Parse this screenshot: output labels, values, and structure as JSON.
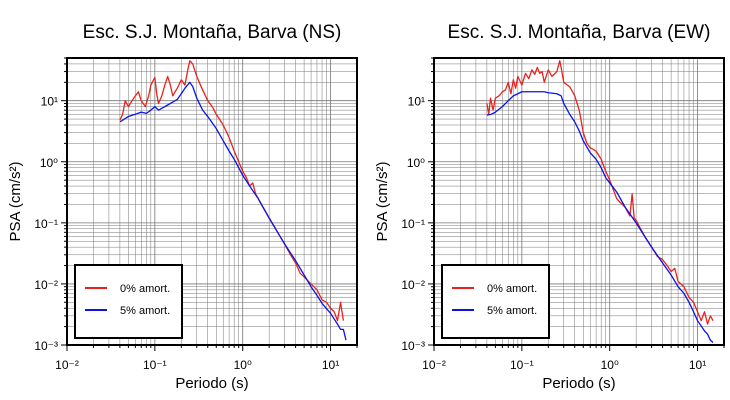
{
  "colors": {
    "undamped": "#e8231f",
    "damped": "#0a14e6",
    "grid": "#777777",
    "frame": "#000000"
  },
  "chart_data": [
    {
      "type": "line",
      "title": "Esc. S.J. Montaña, Barva (NS)",
      "xlabel": "Periodo (s)",
      "ylabel": "PSA (cm/s²)",
      "xscale": "log",
      "yscale": "log",
      "xlim": [
        0.01,
        20
      ],
      "ylim": [
        0.001,
        50
      ],
      "grid": true,
      "legend_position": "bottom-left",
      "x_ticks": [
        "10⁻²",
        "10⁻¹",
        "10⁰",
        "10¹"
      ],
      "y_ticks": [
        "10⁻³",
        "10⁻²",
        "10⁻¹",
        "10⁰",
        "10¹"
      ],
      "series": [
        {
          "name": "0% amort.",
          "color_key": "undamped",
          "points": [
            [
              0.04,
              4.8
            ],
            [
              0.043,
              6
            ],
            [
              0.046,
              10
            ],
            [
              0.05,
              8
            ],
            [
              0.055,
              10
            ],
            [
              0.06,
              12
            ],
            [
              0.065,
              14
            ],
            [
              0.07,
              10
            ],
            [
              0.078,
              8
            ],
            [
              0.085,
              12
            ],
            [
              0.09,
              18
            ],
            [
              0.1,
              24
            ],
            [
              0.105,
              13
            ],
            [
              0.11,
              9
            ],
            [
              0.12,
              12
            ],
            [
              0.13,
              18
            ],
            [
              0.14,
              25
            ],
            [
              0.15,
              18
            ],
            [
              0.16,
              12
            ],
            [
              0.17,
              14
            ],
            [
              0.18,
              16
            ],
            [
              0.2,
              22
            ],
            [
              0.22,
              18
            ],
            [
              0.24,
              35
            ],
            [
              0.25,
              45
            ],
            [
              0.27,
              40
            ],
            [
              0.3,
              25
            ],
            [
              0.32,
              20
            ],
            [
              0.35,
              15
            ],
            [
              0.4,
              10
            ],
            [
              0.45,
              8
            ],
            [
              0.5,
              6
            ],
            [
              0.6,
              4
            ],
            [
              0.7,
              2.5
            ],
            [
              0.8,
              1.5
            ],
            [
              0.9,
              1.0
            ],
            [
              1.0,
              0.7
            ],
            [
              1.1,
              0.55
            ],
            [
              1.2,
              0.4
            ],
            [
              1.3,
              0.45
            ],
            [
              1.4,
              0.3
            ],
            [
              1.5,
              0.25
            ],
            [
              1.7,
              0.18
            ],
            [
              2.0,
              0.12
            ],
            [
              2.5,
              0.07
            ],
            [
              3.0,
              0.045
            ],
            [
              3.5,
              0.03
            ],
            [
              4.0,
              0.022
            ],
            [
              4.5,
              0.015
            ],
            [
              5.0,
              0.013
            ],
            [
              6.0,
              0.01
            ],
            [
              7.0,
              0.008
            ],
            [
              8.0,
              0.0055
            ],
            [
              9.0,
              0.005
            ],
            [
              10.0,
              0.004
            ],
            [
              11.0,
              0.0035
            ],
            [
              12.0,
              0.0025
            ],
            [
              13.0,
              0.005
            ],
            [
              14.0,
              0.0025
            ]
          ]
        },
        {
          "name": "5% amort.",
          "color_key": "damped",
          "points": [
            [
              0.04,
              4.5
            ],
            [
              0.05,
              5.5
            ],
            [
              0.06,
              6
            ],
            [
              0.07,
              6.5
            ],
            [
              0.08,
              6.2
            ],
            [
              0.09,
              7
            ],
            [
              0.1,
              8
            ],
            [
              0.11,
              7
            ],
            [
              0.12,
              7.5
            ],
            [
              0.14,
              8.5
            ],
            [
              0.16,
              9.5
            ],
            [
              0.18,
              10.5
            ],
            [
              0.2,
              13
            ],
            [
              0.22,
              16
            ],
            [
              0.25,
              20
            ],
            [
              0.27,
              17
            ],
            [
              0.3,
              11
            ],
            [
              0.35,
              7
            ],
            [
              0.4,
              5.5
            ],
            [
              0.5,
              3.5
            ],
            [
              0.6,
              2.2
            ],
            [
              0.7,
              1.5
            ],
            [
              0.8,
              1.1
            ],
            [
              0.9,
              0.8
            ],
            [
              1.0,
              0.6
            ],
            [
              1.2,
              0.4
            ],
            [
              1.5,
              0.25
            ],
            [
              2.0,
              0.12
            ],
            [
              2.5,
              0.07
            ],
            [
              3.0,
              0.045
            ],
            [
              4.0,
              0.024
            ],
            [
              5.0,
              0.014
            ],
            [
              6.0,
              0.009
            ],
            [
              7.0,
              0.0065
            ],
            [
              8.0,
              0.0048
            ],
            [
              10.0,
              0.0033
            ],
            [
              12.0,
              0.0022
            ],
            [
              13.0,
              0.0018
            ],
            [
              14.0,
              0.0018
            ],
            [
              15.0,
              0.0012
            ]
          ]
        }
      ]
    },
    {
      "type": "line",
      "title": "Esc. S.J. Montaña, Barva (EW)",
      "xlabel": "Periodo (s)",
      "ylabel": "PSA (cm/s²)",
      "xscale": "log",
      "yscale": "log",
      "xlim": [
        0.01,
        20
      ],
      "ylim": [
        0.001,
        50
      ],
      "grid": true,
      "legend_position": "bottom-left",
      "x_ticks": [
        "10⁻²",
        "10⁻¹",
        "10⁰",
        "10¹"
      ],
      "y_ticks": [
        "10⁻³",
        "10⁻²",
        "10⁻¹",
        "10⁰",
        "10¹"
      ],
      "series": [
        {
          "name": "0% amort.",
          "color_key": "undamped",
          "points": [
            [
              0.04,
              9
            ],
            [
              0.042,
              6
            ],
            [
              0.044,
              11
            ],
            [
              0.047,
              7
            ],
            [
              0.05,
              11
            ],
            [
              0.055,
              12
            ],
            [
              0.06,
              14
            ],
            [
              0.065,
              15
            ],
            [
              0.07,
              20
            ],
            [
              0.075,
              13
            ],
            [
              0.08,
              22
            ],
            [
              0.085,
              16
            ],
            [
              0.09,
              25
            ],
            [
              0.1,
              18
            ],
            [
              0.11,
              28
            ],
            [
              0.12,
              23
            ],
            [
              0.13,
              32
            ],
            [
              0.14,
              27
            ],
            [
              0.15,
              35
            ],
            [
              0.16,
              28
            ],
            [
              0.17,
              30
            ],
            [
              0.18,
              20
            ],
            [
              0.2,
              32
            ],
            [
              0.22,
              25
            ],
            [
              0.25,
              30
            ],
            [
              0.27,
              45
            ],
            [
              0.28,
              35
            ],
            [
              0.3,
              20
            ],
            [
              0.33,
              18
            ],
            [
              0.35,
              17
            ],
            [
              0.4,
              12
            ],
            [
              0.45,
              7
            ],
            [
              0.5,
              3
            ],
            [
              0.55,
              2
            ],
            [
              0.6,
              1.7
            ],
            [
              0.7,
              1.5
            ],
            [
              0.8,
              1.1
            ],
            [
              0.9,
              0.7
            ],
            [
              1.0,
              0.5
            ],
            [
              1.1,
              0.35
            ],
            [
              1.2,
              0.25
            ],
            [
              1.3,
              0.22
            ],
            [
              1.5,
              0.18
            ],
            [
              1.6,
              0.15
            ],
            [
              1.7,
              0.13
            ],
            [
              1.8,
              0.3
            ],
            [
              1.9,
              0.12
            ],
            [
              2.0,
              0.11
            ],
            [
              2.5,
              0.06
            ],
            [
              3.0,
              0.04
            ],
            [
              3.5,
              0.028
            ],
            [
              4.0,
              0.025
            ],
            [
              4.5,
              0.02
            ],
            [
              5.0,
              0.016
            ],
            [
              5.5,
              0.018
            ],
            [
              6.0,
              0.011
            ],
            [
              7.0,
              0.009
            ],
            [
              8.0,
              0.006
            ],
            [
              9.0,
              0.005
            ],
            [
              10.0,
              0.0035
            ],
            [
              11.0,
              0.0025
            ],
            [
              12.0,
              0.0035
            ],
            [
              13.0,
              0.0022
            ],
            [
              14.0,
              0.003
            ],
            [
              15.0,
              0.0025
            ]
          ]
        },
        {
          "name": "5% amort.",
          "color_key": "damped",
          "points": [
            [
              0.04,
              5.8
            ],
            [
              0.045,
              6
            ],
            [
              0.05,
              6.5
            ],
            [
              0.06,
              8
            ],
            [
              0.07,
              10
            ],
            [
              0.08,
              12
            ],
            [
              0.09,
              13
            ],
            [
              0.1,
              14
            ],
            [
              0.12,
              14
            ],
            [
              0.15,
              14
            ],
            [
              0.18,
              14
            ],
            [
              0.2,
              13.5
            ],
            [
              0.25,
              13
            ],
            [
              0.28,
              12
            ],
            [
              0.3,
              9
            ],
            [
              0.35,
              6
            ],
            [
              0.4,
              4.5
            ],
            [
              0.45,
              3.2
            ],
            [
              0.5,
              2.2
            ],
            [
              0.6,
              1.4
            ],
            [
              0.7,
              1.1
            ],
            [
              0.8,
              0.8
            ],
            [
              0.9,
              0.55
            ],
            [
              1.0,
              0.45
            ],
            [
              1.2,
              0.32
            ],
            [
              1.5,
              0.18
            ],
            [
              2.0,
              0.1
            ],
            [
              2.5,
              0.06
            ],
            [
              3.0,
              0.04
            ],
            [
              4.0,
              0.022
            ],
            [
              5.0,
              0.014
            ],
            [
              6.0,
              0.009
            ],
            [
              7.0,
              0.007
            ],
            [
              8.0,
              0.005
            ],
            [
              9.0,
              0.0035
            ],
            [
              10.0,
              0.0025
            ],
            [
              12.0,
              0.0017
            ],
            [
              13.0,
              0.0015
            ],
            [
              14.0,
              0.0012
            ],
            [
              15.0,
              0.0011
            ]
          ]
        }
      ]
    }
  ]
}
